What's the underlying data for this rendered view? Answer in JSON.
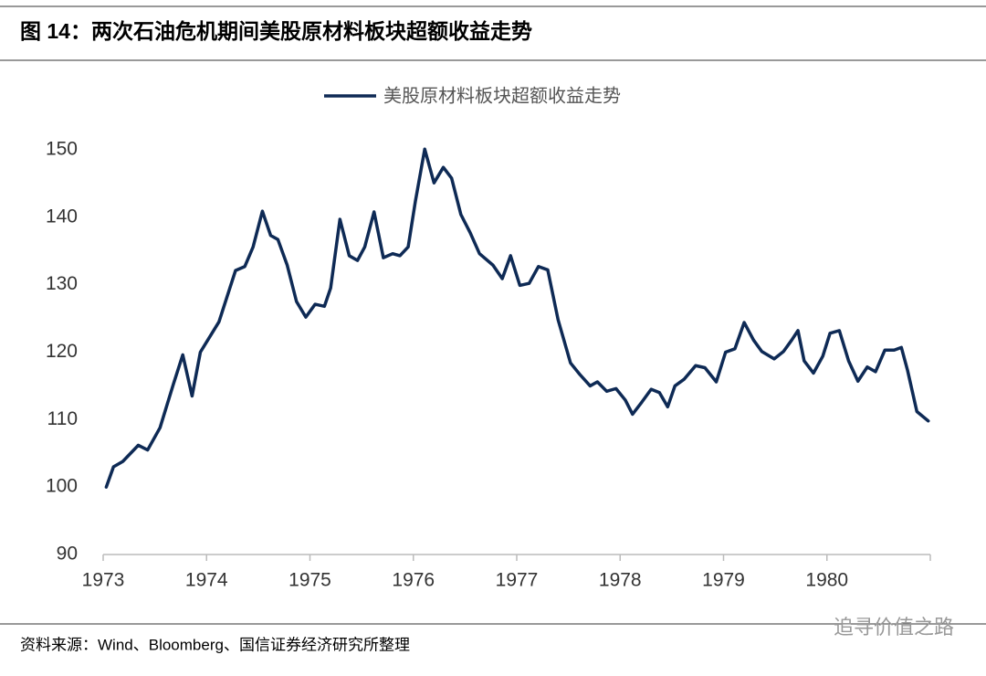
{
  "chart_data": {
    "type": "line",
    "title": "图 14：两次石油危机期间美股原材料板块超额收益走势",
    "source": "资料来源：Wind、Bloomberg、国信证券经济研究所整理",
    "watermark": "追寻价值之路",
    "legend": "top",
    "x": [
      1973.03,
      1973.1,
      1973.19,
      1973.34,
      1973.43,
      1973.55,
      1973.68,
      1973.77,
      1973.86,
      1973.94,
      1974.12,
      1974.28,
      1974.37,
      1974.45,
      1974.54,
      1974.62,
      1974.69,
      1974.78,
      1974.87,
      1974.96,
      1975.05,
      1975.14,
      1975.2,
      1975.29,
      1975.38,
      1975.46,
      1975.53,
      1975.62,
      1975.71,
      1975.8,
      1975.87,
      1975.95,
      1976.02,
      1976.11,
      1976.2,
      1976.29,
      1976.37,
      1976.46,
      1976.55,
      1976.64,
      1976.77,
      1976.86,
      1976.94,
      1977.03,
      1977.12,
      1977.21,
      1977.3,
      1977.4,
      1977.52,
      1977.61,
      1977.71,
      1977.78,
      1977.87,
      1977.96,
      1978.05,
      1978.12,
      1978.21,
      1978.3,
      1978.38,
      1978.46,
      1978.53,
      1978.62,
      1978.73,
      1978.82,
      1978.93,
      1979.02,
      1979.11,
      1979.2,
      1979.29,
      1979.37,
      1979.49,
      1979.58,
      1979.66,
      1979.72,
      1979.78,
      1979.87,
      1979.96,
      1980.03,
      1980.12,
      1980.21,
      1980.3,
      1980.39,
      1980.47,
      1980.56,
      1980.65,
      1980.72,
      1980.78,
      1980.87,
      1980.98
    ],
    "series": [
      {
        "name": "美股原材料板块超额收益走势",
        "color": "#0e2a55",
        "values": [
          100,
          103,
          103.8,
          106.2,
          105.5,
          108.8,
          115.3,
          119.6,
          113.5,
          120,
          124.5,
          132.1,
          132.7,
          135.6,
          140.9,
          137.3,
          136.7,
          132.9,
          127.5,
          125.2,
          127.1,
          126.8,
          129.5,
          139.7,
          134.3,
          133.6,
          135.6,
          140.8,
          134,
          134.6,
          134.3,
          135.6,
          142.4,
          150.1,
          145.1,
          147.4,
          145.8,
          140.4,
          137.7,
          134.6,
          132.9,
          130.9,
          134.3,
          129.9,
          130.2,
          132.7,
          132.2,
          124.8,
          118.4,
          116.7,
          115,
          115.6,
          114.2,
          114.6,
          112.9,
          110.8,
          112.6,
          114.5,
          114,
          111.9,
          115,
          116,
          118,
          117.7,
          115.6,
          120,
          120.5,
          124.4,
          121.8,
          120.1,
          119,
          120.1,
          121.8,
          123.2,
          118.7,
          116.9,
          119.4,
          122.8,
          123.2,
          118.7,
          115.7,
          117.8,
          117.1,
          120.3,
          120.3,
          120.7,
          117.3,
          111.2,
          109.8
        ]
      }
    ],
    "xlim": [
      1973,
      1981
    ],
    "xticks": [
      1973,
      1974,
      1975,
      1976,
      1977,
      1978,
      1979,
      1980
    ],
    "ylim": [
      90,
      150
    ],
    "yticks": [
      90,
      100,
      110,
      120,
      130,
      140,
      150
    ]
  }
}
